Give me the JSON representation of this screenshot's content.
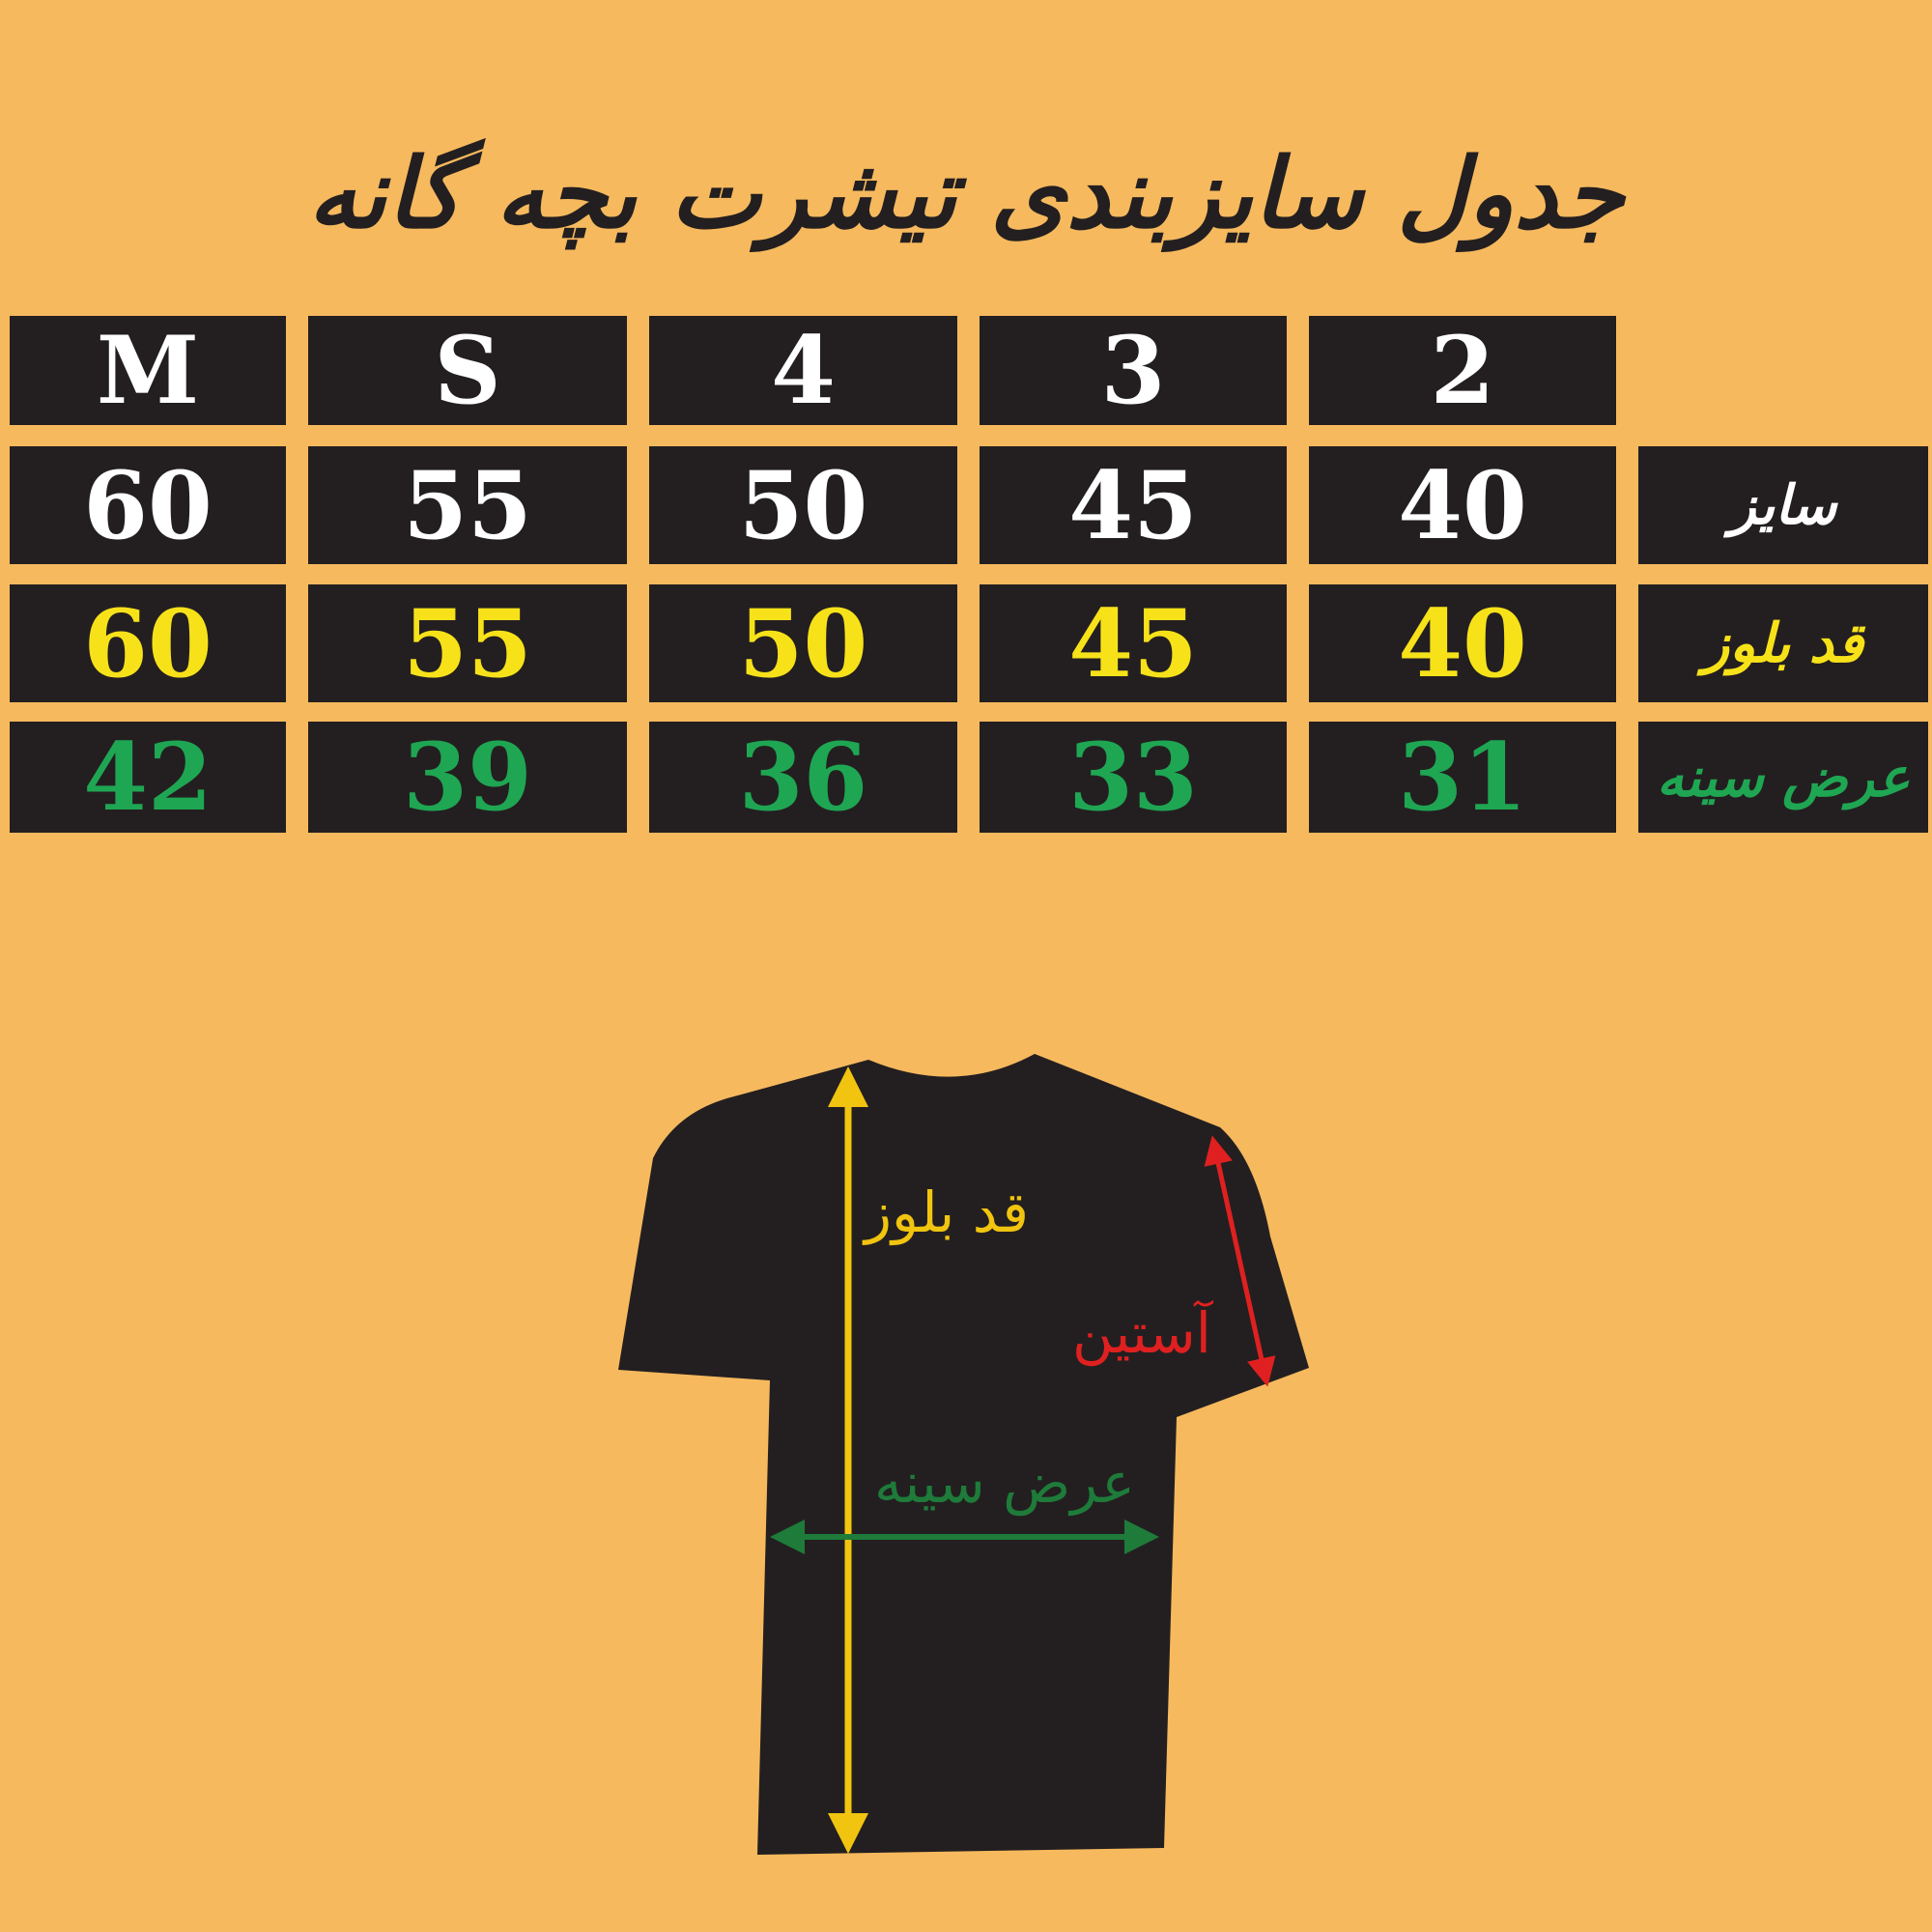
{
  "title": "جدول سایزبندی تیشرت بچه گانه",
  "table": {
    "sizes": [
      "M",
      "S",
      "4",
      "3",
      "2"
    ],
    "rows": [
      {
        "label": "سایز",
        "values": [
          "60",
          "55",
          "50",
          "45",
          "40"
        ],
        "color": "#ffffff"
      },
      {
        "label": "قد بلوز",
        "values": [
          "60",
          "55",
          "50",
          "45",
          "40"
        ],
        "color": "#f7e21a"
      },
      {
        "label": "عرض سینه",
        "values": [
          "42",
          "39",
          "36",
          "33",
          "31"
        ],
        "color": "#1fa653"
      }
    ]
  },
  "diagram": {
    "length_label": "قد بلوز",
    "sleeve_label": "آستین",
    "chest_label": "عرض سینه"
  },
  "colors": {
    "background": "#f6b95e",
    "cell": "#231f20",
    "length": "#f1c40f",
    "sleeve": "#e02020",
    "chest": "#1e7b3a"
  }
}
